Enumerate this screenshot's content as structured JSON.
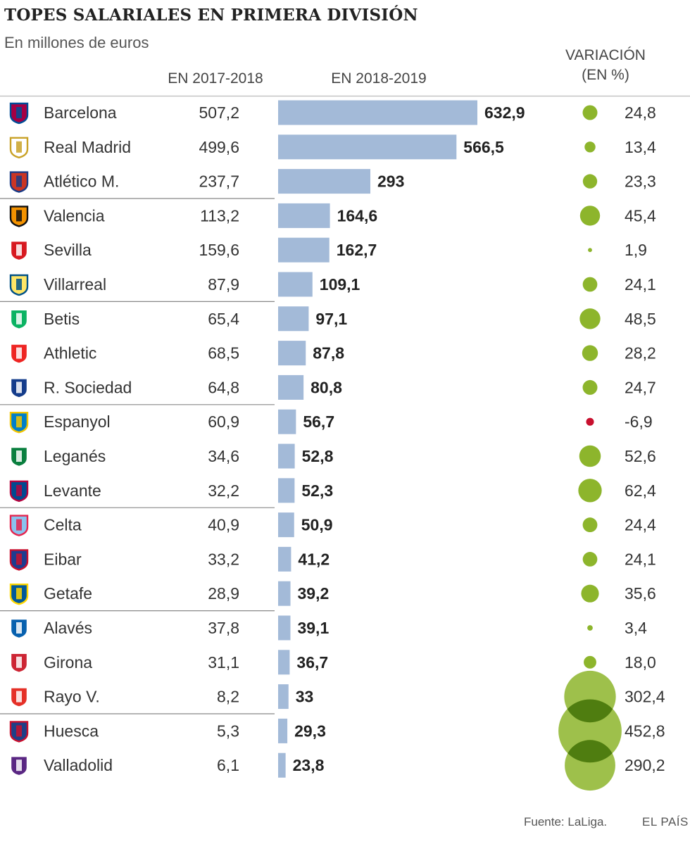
{
  "title": "TOPES SALARIALES EN PRIMERA DIVISIÓN",
  "subtitle": "En millones de euros",
  "columns": {
    "prev": "EN 2017-2018",
    "curr": "EN 2018-2019",
    "var_line1": "VARIACIÓN",
    "var_line2": "(EN %)"
  },
  "footer": {
    "source": "Fuente: LaLiga.",
    "brand": "EL PAÍS"
  },
  "colors": {
    "bar": "#a3bad8",
    "bubble_positive": "#8db52c",
    "bubble_negative": "#c8102e",
    "rule": "#bbbbbb"
  },
  "chart_data": {
    "type": "table",
    "row_groups_of": 3,
    "rows": [
      {
        "team": "Barcelona",
        "icon": "barcelona-crest-icon",
        "prev_label": "507,2",
        "curr_label": "632,9",
        "var_label": "24,8",
        "curr": 632.9,
        "var": 24.8
      },
      {
        "team": "Real Madrid",
        "icon": "real-madrid-crest-icon",
        "prev_label": "499,6",
        "curr_label": "566,5",
        "var_label": "13,4",
        "curr": 566.5,
        "var": 13.4
      },
      {
        "team": "Atlético M.",
        "icon": "atletico-crest-icon",
        "prev_label": "237,7",
        "curr_label": "293",
        "var_label": "23,3",
        "curr": 293,
        "var": 23.3
      },
      {
        "team": "Valencia",
        "icon": "valencia-crest-icon",
        "prev_label": "113,2",
        "curr_label": "164,6",
        "var_label": "45,4",
        "curr": 164.6,
        "var": 45.4
      },
      {
        "team": "Sevilla",
        "icon": "sevilla-crest-icon",
        "prev_label": "159,6",
        "curr_label": "162,7",
        "var_label": "1,9",
        "curr": 162.7,
        "var": 1.9
      },
      {
        "team": "Villarreal",
        "icon": "villarreal-crest-icon",
        "prev_label": "87,9",
        "curr_label": "109,1",
        "var_label": "24,1",
        "curr": 109.1,
        "var": 24.1
      },
      {
        "team": "Betis",
        "icon": "betis-crest-icon",
        "prev_label": "65,4",
        "curr_label": "97,1",
        "var_label": "48,5",
        "curr": 97.1,
        "var": 48.5
      },
      {
        "team": "Athletic",
        "icon": "athletic-crest-icon",
        "prev_label": "68,5",
        "curr_label": "87,8",
        "var_label": "28,2",
        "curr": 87.8,
        "var": 28.2
      },
      {
        "team": "R. Sociedad",
        "icon": "real-sociedad-crest-icon",
        "prev_label": "64,8",
        "curr_label": "80,8",
        "var_label": "24,7",
        "curr": 80.8,
        "var": 24.7
      },
      {
        "team": "Espanyol",
        "icon": "espanyol-crest-icon",
        "prev_label": "60,9",
        "curr_label": "56,7",
        "var_label": "-6,9",
        "curr": 56.7,
        "var": -6.9
      },
      {
        "team": "Leganés",
        "icon": "leganes-crest-icon",
        "prev_label": "34,6",
        "curr_label": "52,8",
        "var_label": "52,6",
        "curr": 52.8,
        "var": 52.6
      },
      {
        "team": "Levante",
        "icon": "levante-crest-icon",
        "prev_label": "32,2",
        "curr_label": "52,3",
        "var_label": "62,4",
        "curr": 52.3,
        "var": 62.4
      },
      {
        "team": "Celta",
        "icon": "celta-crest-icon",
        "prev_label": "40,9",
        "curr_label": "50,9",
        "var_label": "24,4",
        "curr": 50.9,
        "var": 24.4
      },
      {
        "team": "Eibar",
        "icon": "eibar-crest-icon",
        "prev_label": "33,2",
        "curr_label": "41,2",
        "var_label": "24,1",
        "curr": 41.2,
        "var": 24.1
      },
      {
        "team": "Getafe",
        "icon": "getafe-crest-icon",
        "prev_label": "28,9",
        "curr_label": "39,2",
        "var_label": "35,6",
        "curr": 39.2,
        "var": 35.6
      },
      {
        "team": "Alavés",
        "icon": "alaves-crest-icon",
        "prev_label": "37,8",
        "curr_label": "39,1",
        "var_label": "3,4",
        "curr": 39.1,
        "var": 3.4
      },
      {
        "team": "Girona",
        "icon": "girona-crest-icon",
        "prev_label": "31,1",
        "curr_label": "36,7",
        "var_label": "18,0",
        "curr": 36.7,
        "var": 18.0
      },
      {
        "team": "Rayo V.",
        "icon": "rayo-crest-icon",
        "prev_label": "8,2",
        "curr_label": "33",
        "var_label": "302,4",
        "curr": 33,
        "var": 302.4
      },
      {
        "team": "Huesca",
        "icon": "huesca-crest-icon",
        "prev_label": "5,3",
        "curr_label": "29,3",
        "var_label": "452,8",
        "curr": 29.3,
        "var": 452.8
      },
      {
        "team": "Valladolid",
        "icon": "valladolid-crest-icon",
        "prev_label": "6,1",
        "curr_label": "23,8",
        "var_label": "290,2",
        "curr": 23.8,
        "var": 290.2
      }
    ]
  }
}
